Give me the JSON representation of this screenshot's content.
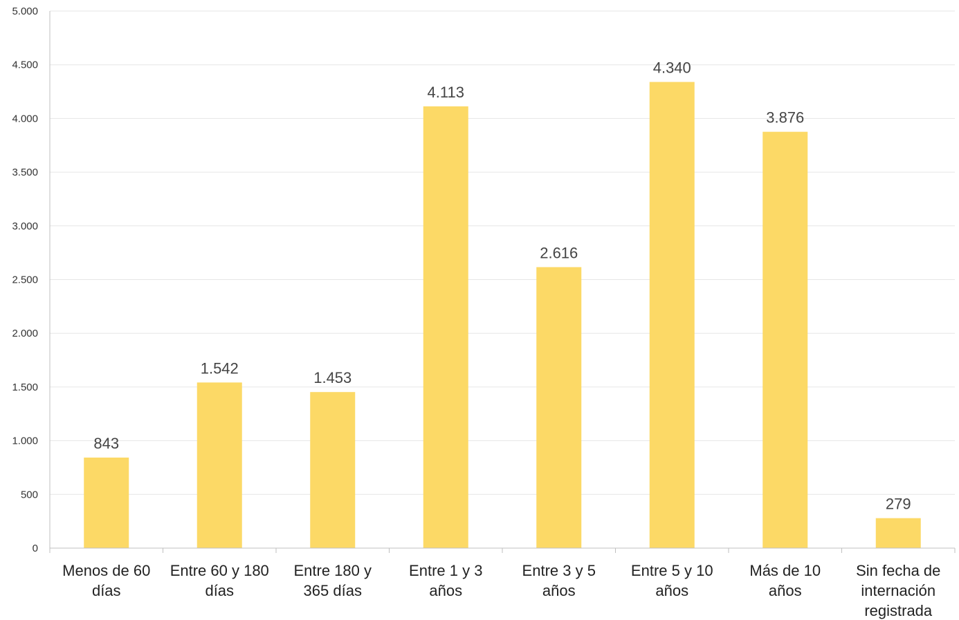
{
  "chart_data": {
    "type": "bar",
    "title": "",
    "xlabel": "",
    "ylabel": "",
    "categories": [
      "Menos de 60 días",
      "Entre 60 y 180 días",
      "Entre 180 y 365 días",
      "Entre 1 y 3 años",
      "Entre 3 y 5 años",
      "Entre 5 y 10 años",
      "Más de 10 años",
      "Sin fecha de internación registrada"
    ],
    "category_lines": [
      [
        "Menos de 60",
        "días"
      ],
      [
        "Entre 60 y 180",
        "días"
      ],
      [
        "Entre 180 y",
        "365 días"
      ],
      [
        "Entre 1 y 3",
        "años"
      ],
      [
        "Entre 3 y 5",
        "años"
      ],
      [
        "Entre 5 y 10",
        "años"
      ],
      [
        "Más de 10",
        "años"
      ],
      [
        "Sin fecha de",
        "internación",
        "registrada"
      ]
    ],
    "values": [
      843,
      1542,
      1453,
      4113,
      2616,
      4340,
      3876,
      279
    ],
    "value_labels": [
      "843",
      "1.542",
      "1.453",
      "4.113",
      "2.616",
      "4.340",
      "3.876",
      "279"
    ],
    "ylim": [
      0,
      5000
    ],
    "yticks": [
      0,
      500,
      1000,
      1500,
      2000,
      2500,
      3000,
      3500,
      4000,
      4500,
      5000
    ],
    "ytick_labels": [
      "0",
      "500",
      "1.000",
      "1.500",
      "2.000",
      "2.500",
      "3.000",
      "3.500",
      "4.000",
      "4.500",
      "5.000"
    ],
    "grid": true,
    "legend": "none",
    "bar_color": "#FCD966"
  }
}
